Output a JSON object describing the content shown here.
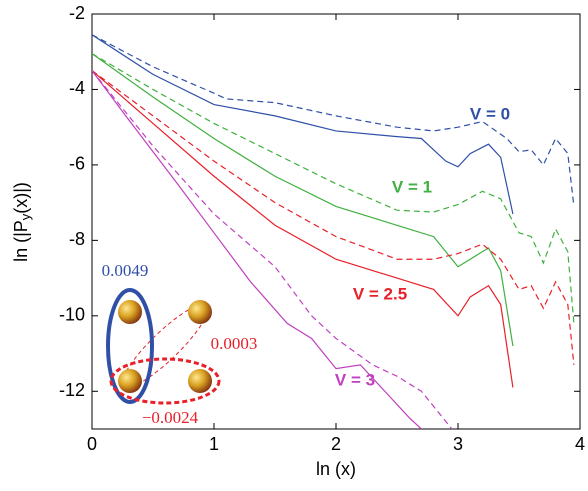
{
  "chart_data": {
    "type": "line",
    "xlabel": "ln (x)",
    "ylabel": {
      "main": "ln (|P",
      "sub": "y",
      "tail": "(x)|)"
    },
    "xlim": [
      0,
      4
    ],
    "xticks": [
      0,
      1,
      2,
      3,
      4
    ],
    "ylim": [
      -13,
      -2
    ],
    "yticks": [
      -2,
      -4,
      -6,
      -8,
      -10,
      -12
    ],
    "series": [
      {
        "name": "V = 0",
        "color": "#3050a8",
        "lines": [
          {
            "style": "dashed",
            "x": [
              0,
              0.5,
              1,
              1.1,
              1.5,
              2,
              2.5,
              2.8,
              3,
              3.2,
              3.4,
              3.5,
              3.6,
              3.7,
              3.8,
              3.9,
              3.95
            ],
            "values": [
              -2.55,
              -3.4,
              -4.1,
              -4.25,
              -4.35,
              -4.7,
              -5.0,
              -5.1,
              -5.0,
              -4.85,
              -5.3,
              -5.65,
              -5.6,
              -6.0,
              -5.3,
              -5.7,
              -7.1
            ]
          },
          {
            "style": "solid",
            "x": [
              0,
              0.5,
              1,
              1.5,
              2,
              2.5,
              2.7,
              2.9,
              3.0,
              3.1,
              3.25,
              3.35,
              3.45
            ],
            "values": [
              -2.55,
              -3.6,
              -4.4,
              -4.7,
              -5.1,
              -5.25,
              -5.3,
              -5.9,
              -6.05,
              -5.7,
              -5.45,
              -5.8,
              -7.3
            ]
          }
        ]
      },
      {
        "name": "V = 1",
        "color": "#40b040",
        "lines": [
          {
            "style": "dashed",
            "x": [
              0,
              0.5,
              1,
              1.5,
              2,
              2.5,
              2.8,
              3,
              3.2,
              3.35,
              3.5,
              3.6,
              3.7,
              3.8,
              3.9,
              3.95
            ],
            "values": [
              -3.05,
              -4.0,
              -4.9,
              -5.7,
              -6.5,
              -7.2,
              -7.25,
              -7.05,
              -6.7,
              -6.9,
              -7.8,
              -7.9,
              -8.6,
              -7.7,
              -8.3,
              -10.2
            ]
          },
          {
            "style": "solid",
            "x": [
              0,
              0.5,
              1,
              1.5,
              2,
              2.5,
              2.8,
              3.0,
              3.1,
              3.25,
              3.35,
              3.45
            ],
            "values": [
              -3.05,
              -4.2,
              -5.3,
              -6.3,
              -7.1,
              -7.6,
              -7.9,
              -8.7,
              -8.5,
              -8.2,
              -8.8,
              -10.8
            ]
          }
        ]
      },
      {
        "name": "V = 2.5",
        "color": "#e8202a",
        "lines": [
          {
            "style": "dashed",
            "x": [
              0,
              0.5,
              1,
              1.5,
              2,
              2.5,
              2.8,
              3,
              3.2,
              3.35,
              3.5,
              3.6,
              3.7,
              3.8,
              3.9,
              3.95
            ],
            "values": [
              -3.5,
              -4.7,
              -5.9,
              -7.0,
              -7.9,
              -8.5,
              -8.5,
              -8.35,
              -8.1,
              -8.5,
              -9.3,
              -9.2,
              -9.8,
              -9.1,
              -9.7,
              -11.3
            ]
          },
          {
            "style": "solid",
            "x": [
              0,
              0.5,
              1,
              1.5,
              2,
              2.5,
              2.8,
              3,
              3.1,
              3.25,
              3.35,
              3.45
            ],
            "values": [
              -3.5,
              -4.9,
              -6.3,
              -7.6,
              -8.5,
              -9.0,
              -9.3,
              -10.0,
              -9.5,
              -9.2,
              -9.7,
              -11.9
            ]
          }
        ]
      },
      {
        "name": "V = 3",
        "color": "#c040c0",
        "lines": [
          {
            "style": "dashed",
            "x": [
              0,
              0.5,
              1,
              1.5,
              1.8,
              2,
              2.3,
              2.5,
              2.7,
              2.85,
              2.95
            ],
            "values": [
              -3.5,
              -5.5,
              -7.3,
              -8.7,
              -10.0,
              -10.6,
              -11.3,
              -11.6,
              -12.0,
              -12.6,
              -13
            ]
          },
          {
            "style": "solid",
            "x": [
              0,
              0.3,
              0.7,
              1,
              1.3,
              1.6,
              1.8,
              2,
              2.2,
              2.4,
              2.6,
              2.7
            ],
            "values": [
              -3.5,
              -4.8,
              -6.5,
              -7.8,
              -9.1,
              -10.2,
              -10.6,
              -11.4,
              -11.3,
              -12.0,
              -12.7,
              -13
            ]
          }
        ]
      }
    ],
    "inset": {
      "labels": [
        {
          "text": "0.0049",
          "color": "#3050a8"
        },
        {
          "text": "0.0003",
          "color": "#e8202a"
        },
        {
          "text": "−0.0024",
          "color": "#e8202a"
        }
      ]
    }
  }
}
